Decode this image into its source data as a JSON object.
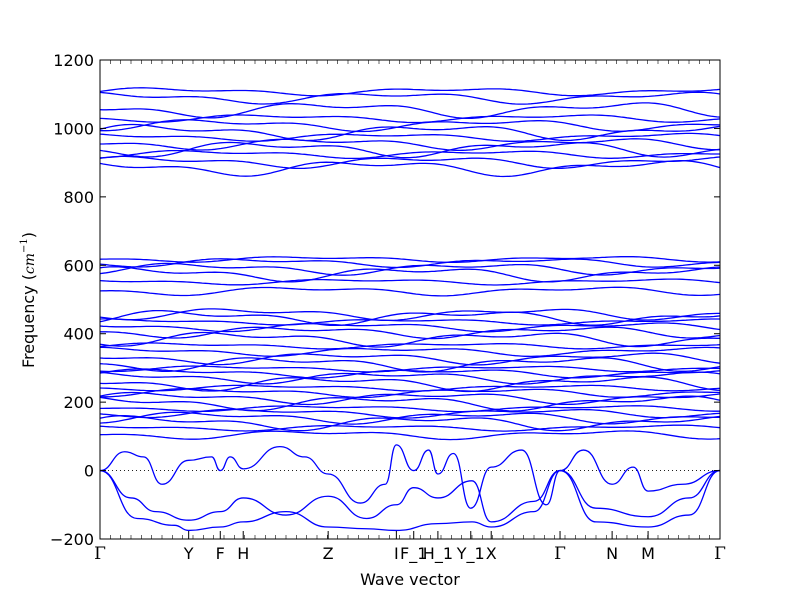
{
  "chart_data": {
    "type": "line",
    "title": "",
    "xlabel": "Wave vector",
    "ylabel_prefix": "Frequency (",
    "ylabel_unit": "cm",
    "ylabel_exp": "−1",
    "ylabel_suffix": ")",
    "ylim": [
      -200,
      1200
    ],
    "yticks": [
      -200,
      0,
      200,
      400,
      600,
      800,
      1000,
      1200
    ],
    "zero_line": {
      "style": "dotted",
      "value": 0
    },
    "grid": false,
    "legend": "none",
    "line_color": "#0000ff",
    "x_ticks": [
      {
        "pos": 0.0,
        "label": "Γ"
      },
      {
        "pos": 0.143,
        "label": "Y"
      },
      {
        "pos": 0.194,
        "label": "F"
      },
      {
        "pos": 0.231,
        "label": "H"
      },
      {
        "pos": 0.368,
        "label": "Z"
      },
      {
        "pos": 0.478,
        "label": "I"
      },
      {
        "pos": 0.506,
        "label": "F_1"
      },
      {
        "pos": 0.545,
        "label": "H_1"
      },
      {
        "pos": 0.598,
        "label": "Y_1"
      },
      {
        "pos": 0.631,
        "label": "X"
      },
      {
        "pos": 0.742,
        "label": "Γ"
      },
      {
        "pos": 0.826,
        "label": "N"
      },
      {
        "pos": 0.884,
        "label": "M"
      },
      {
        "pos": 1.0,
        "label": "Γ"
      }
    ],
    "minor_ticks": 60,
    "branch_levels": {
      "upper": [
        1108,
        1090,
        1055,
        1030,
        1010,
        990,
        975,
        955,
        940,
        925,
        902,
        885
      ],
      "middle": [
        618,
        608,
        590,
        575,
        552,
        525,
        458,
        448,
        435,
        420,
        405,
        385,
        365,
        348,
        328,
        312,
        298,
        285,
        272,
        255,
        242,
        228,
        212,
        198,
        182,
        168,
        155,
        140,
        125,
        105
      ]
    },
    "acoustic_branches": [
      {
        "x": [
          0.0,
          0.04,
          0.07,
          0.1,
          0.143,
          0.18,
          0.194,
          0.21,
          0.231,
          0.29,
          0.33,
          0.368,
          0.42,
          0.46,
          0.478,
          0.506,
          0.53,
          0.545,
          0.57,
          0.598,
          0.631,
          0.68,
          0.72,
          0.742,
          0.78,
          0.826,
          0.86,
          0.884,
          0.94,
          1.0
        ],
        "y": [
          0,
          55,
          40,
          -40,
          30,
          40,
          0,
          40,
          5,
          70,
          40,
          -10,
          -95,
          -40,
          75,
          0,
          60,
          -10,
          50,
          -110,
          10,
          60,
          -100,
          0,
          60,
          -40,
          10,
          -60,
          -40,
          0
        ]
      },
      {
        "x": [
          0.0,
          0.05,
          0.09,
          0.143,
          0.194,
          0.231,
          0.3,
          0.368,
          0.43,
          0.478,
          0.506,
          0.545,
          0.6,
          0.631,
          0.7,
          0.742,
          0.8,
          0.884,
          0.95,
          1.0
        ],
        "y": [
          0,
          -80,
          -120,
          -145,
          -120,
          -80,
          -130,
          -75,
          -140,
          -100,
          -50,
          -80,
          -30,
          -150,
          -90,
          0,
          -110,
          -135,
          -80,
          0
        ]
      },
      {
        "x": [
          0.0,
          0.06,
          0.12,
          0.143,
          0.194,
          0.231,
          0.3,
          0.368,
          0.43,
          0.478,
          0.545,
          0.6,
          0.631,
          0.7,
          0.742,
          0.8,
          0.884,
          0.95,
          1.0
        ],
        "y": [
          0,
          -140,
          -160,
          -175,
          -165,
          -150,
          -120,
          -165,
          -170,
          -175,
          -155,
          -150,
          -165,
          -120,
          0,
          -150,
          -165,
          -130,
          0
        ]
      }
    ]
  }
}
